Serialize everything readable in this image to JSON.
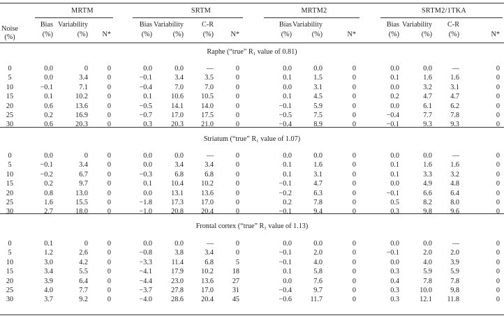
{
  "groups": [
    "MRTM",
    "SRTM",
    "MRTM2",
    "SRTM2/1TKA"
  ],
  "header": {
    "noise_top": "Noise",
    "noise_unit": "(%)",
    "columns": [
      {
        "top": "Bias",
        "unit": "(%)"
      },
      {
        "top": "Variability",
        "unit": "(%)"
      },
      {
        "top": "",
        "unit": "N*"
      },
      {
        "top": "Bias",
        "unit": "(%)"
      },
      {
        "top": "Variability",
        "unit": "(%)"
      },
      {
        "top": "C-R",
        "unit": "(%)"
      },
      {
        "top": "",
        "unit": "N*"
      },
      {
        "top": "Bias",
        "unit": "(%)"
      },
      {
        "top": "Variability",
        "unit": "(%)"
      },
      {
        "top": "",
        "unit": "N*"
      },
      {
        "top": "Bias",
        "unit": "(%)"
      },
      {
        "top": "Variability",
        "unit": "(%)"
      },
      {
        "top": "C-R",
        "unit": "(%)"
      },
      {
        "top": "",
        "unit": "N*"
      }
    ]
  },
  "sections": [
    {
      "title": "Raphe (“true” R₁ value of 0.81)",
      "rows": [
        [
          "0",
          "0.0",
          "0",
          "0",
          "0.0",
          "0.0",
          "—",
          "0",
          "0.0",
          "0.0",
          "0",
          "0.0",
          "0.0",
          "—",
          "0"
        ],
        [
          "5",
          "0.0",
          "3.4",
          "0",
          "−0.1",
          "3.4",
          "3.5",
          "0",
          "0.1",
          "1.5",
          "0",
          "0.1",
          "1.6",
          "1.6",
          "0"
        ],
        [
          "10",
          "−0.1",
          "7.1",
          "0",
          "−0.4",
          "7.0",
          "7.0",
          "0",
          "0.0",
          "3.1",
          "0",
          "0.0",
          "3.2",
          "3.1",
          "0"
        ],
        [
          "15",
          "0.1",
          "10.2",
          "0",
          "0.1",
          "10.6",
          "10.5",
          "0",
          "0.1",
          "4.5",
          "0",
          "0.2",
          "4.7",
          "4.7",
          "0"
        ],
        [
          "20",
          "0.6",
          "13.6",
          "0",
          "−0.5",
          "14.1",
          "14.0",
          "0",
          "−0.1",
          "5.9",
          "0",
          "0.0",
          "6.1",
          "6.2",
          "0"
        ],
        [
          "25",
          "0.2",
          "16.9",
          "0",
          "−0.7",
          "17.0",
          "17.5",
          "0",
          "−0.5",
          "7.5",
          "0",
          "−0.4",
          "7.7",
          "7.8",
          "0"
        ],
        [
          "30",
          "0.6",
          "20.3",
          "0",
          "0.3",
          "20.3",
          "21.0",
          "0",
          "−0.4",
          "8.9",
          "0",
          "−0.1",
          "9.3",
          "9.3",
          "0"
        ]
      ]
    },
    {
      "title": "Striatum (“true” R₁ value of 1.07)",
      "rows": [
        [
          "0",
          "0.0",
          "0",
          "0",
          "0.0",
          "0.0",
          "—",
          "0",
          "0.0",
          "0.0",
          "0",
          "0.0",
          "0.0",
          "—",
          "0"
        ],
        [
          "5",
          "−0.1",
          "3.4",
          "0",
          "0.0",
          "3.4",
          "3.4",
          "0",
          "0.1",
          "1.6",
          "0",
          "0.1",
          "1.6",
          "1.6",
          "0"
        ],
        [
          "10",
          "−0.2",
          "6.7",
          "0",
          "−0.3",
          "6.8",
          "6.8",
          "0",
          "0.1",
          "3.1",
          "0",
          "0.1",
          "3.3",
          "3.2",
          "0"
        ],
        [
          "15",
          "0.2",
          "9.7",
          "0",
          "0.1",
          "10.4",
          "10.2",
          "0",
          "−0.1",
          "4.7",
          "0",
          "0.0",
          "4.9",
          "4.8",
          "0"
        ],
        [
          "20",
          "0.8",
          "13.0",
          "0",
          "0.0",
          "13.1",
          "13.6",
          "0",
          "−0.2",
          "6.3",
          "0",
          "−0.1",
          "6.6",
          "6.4",
          "0"
        ],
        [
          "25",
          "1.6",
          "15.5",
          "0",
          "−1.8",
          "17.3",
          "17.0",
          "0",
          "0.2",
          "7.8",
          "0",
          "0.5",
          "8.2",
          "8.0",
          "0"
        ],
        [
          "30",
          "2.7",
          "18.0",
          "0",
          "−1.0",
          "20.8",
          "20.4",
          "0",
          "−0.1",
          "9.4",
          "0",
          "0.3",
          "9.8",
          "9.6",
          "0"
        ]
      ]
    },
    {
      "title": "Frontal cortex (“true” R₁ value of 1.13)",
      "rows": [
        [
          "0",
          "0.1",
          "0",
          "0",
          "0.0",
          "0.0",
          "—",
          "0",
          "0.0",
          "0.0",
          "0",
          "0.0",
          "0.0",
          "—",
          "0"
        ],
        [
          "5",
          "1.2",
          "2.6",
          "0",
          "−0.8",
          "3.8",
          "3.4",
          "0",
          "−0.1",
          "2.0",
          "0",
          "−0.1",
          "2.0",
          "2.0",
          "0"
        ],
        [
          "10",
          "3.0",
          "4.2",
          "0",
          "−3.3",
          "11.4",
          "6.8",
          "5",
          "−0.1",
          "4.0",
          "0",
          "0.0",
          "4.0",
          "3.9",
          "0"
        ],
        [
          "15",
          "3.4",
          "5.5",
          "0",
          "−4.1",
          "17.9",
          "10.2",
          "18",
          "0.1",
          "5.8",
          "0",
          "0.3",
          "5.9",
          "5.9",
          "0"
        ],
        [
          "20",
          "3.9",
          "6.4",
          "0",
          "−4.4",
          "23.0",
          "13.6",
          "27",
          "0.0",
          "7.6",
          "0",
          "0.4",
          "7.8",
          "7.8",
          "0"
        ],
        [
          "25",
          "4.0",
          "7.7",
          "0",
          "−3.7",
          "27.8",
          "17.0",
          "31",
          "−0.4",
          "9.7",
          "0",
          "0.3",
          "10.0",
          "9.8",
          "0"
        ],
        [
          "30",
          "3.7",
          "9.2",
          "0",
          "−4.0",
          "28.6",
          "20.4",
          "45",
          "−0.6",
          "11.7",
          "0",
          "0.3",
          "12.1",
          "11.8",
          "0"
        ]
      ]
    }
  ]
}
